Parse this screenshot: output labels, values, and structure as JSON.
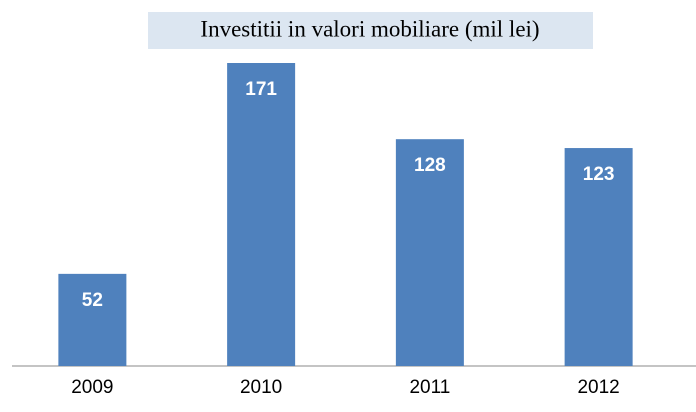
{
  "chart_data": {
    "type": "bar",
    "title": "Investitii in valori mobiliare (mil lei)",
    "categories": [
      "2009",
      "2010",
      "2011",
      "2012"
    ],
    "values": [
      52,
      171,
      128,
      123
    ],
    "color": "#4f81bd"
  }
}
